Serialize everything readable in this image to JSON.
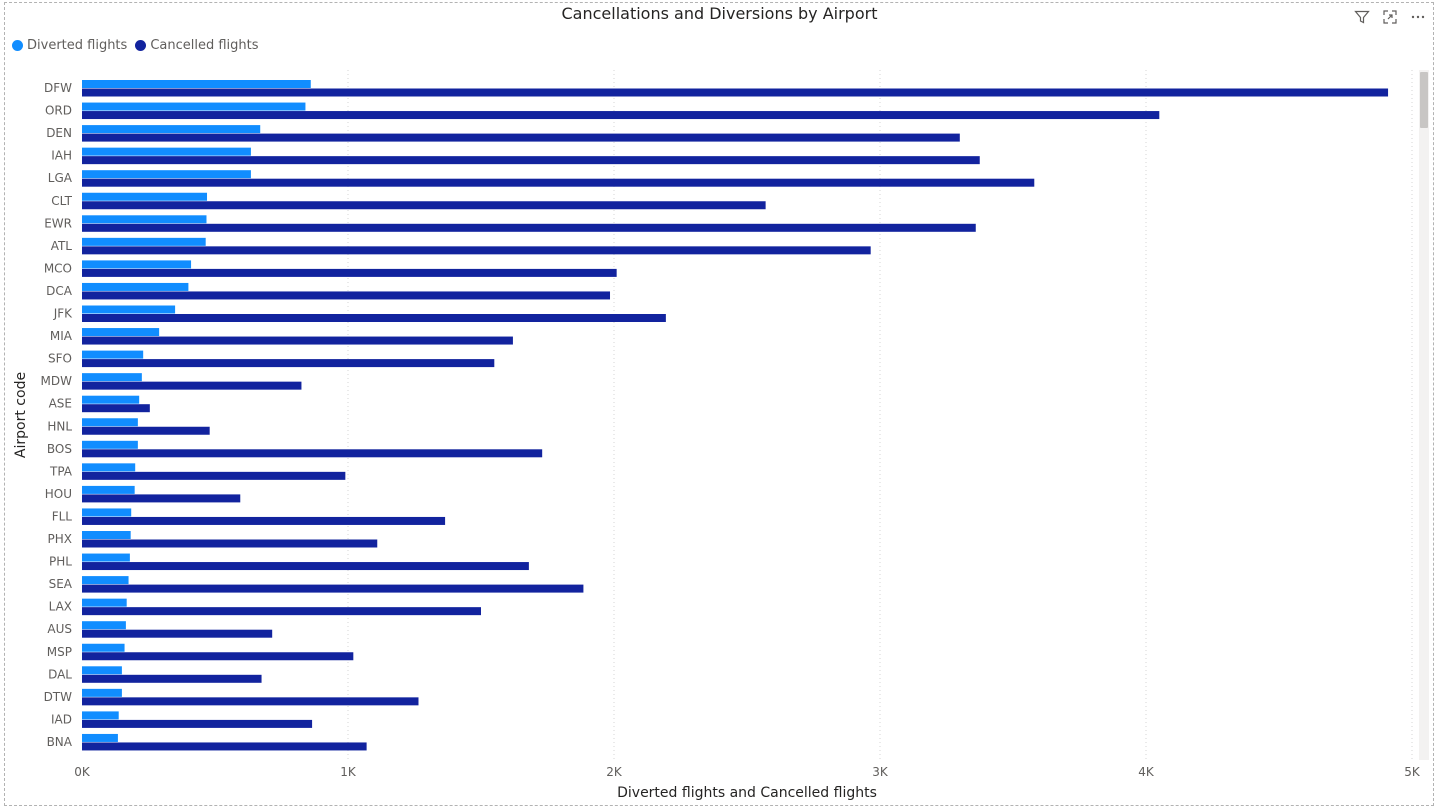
{
  "chart_data": {
    "type": "bar",
    "orientation": "horizontal",
    "title": "Cancellations and Diversions by Airport",
    "xlabel": "Diverted flights and Cancelled flights",
    "ylabel": "Airport code",
    "xlim": [
      0,
      5000
    ],
    "x_ticks": [
      0,
      1000,
      2000,
      3000,
      4000,
      5000
    ],
    "x_tick_labels": [
      "0K",
      "1K",
      "2K",
      "3K",
      "4K",
      "5K"
    ],
    "grid": "vertical dotted",
    "legend_position": "top-left",
    "categories": [
      "DFW",
      "ORD",
      "DEN",
      "IAH",
      "LGA",
      "CLT",
      "EWR",
      "ATL",
      "MCO",
      "DCA",
      "JFK",
      "MIA",
      "SFO",
      "MDW",
      "ASE",
      "HNL",
      "BOS",
      "TPA",
      "HOU",
      "FLL",
      "PHX",
      "PHL",
      "SEA",
      "LAX",
      "AUS",
      "MSP",
      "DAL",
      "DTW",
      "IAD",
      "BNA"
    ],
    "series": [
      {
        "name": "Diverted flights",
        "color": "#118DFF",
        "values": [
          860,
          840,
          670,
          635,
          635,
          470,
          468,
          465,
          410,
          400,
          350,
          290,
          230,
          225,
          215,
          210,
          210,
          200,
          198,
          185,
          183,
          180,
          175,
          168,
          165,
          160,
          150,
          150,
          138,
          135
        ]
      },
      {
        "name": "Cancelled flights",
        "color": "#12239E",
        "values": [
          4910,
          4050,
          3300,
          3375,
          3580,
          2570,
          3360,
          2965,
          2010,
          1985,
          2195,
          1620,
          1550,
          825,
          255,
          480,
          1730,
          990,
          595,
          1365,
          1110,
          1680,
          1885,
          1500,
          715,
          1020,
          675,
          1265,
          865,
          1070
        ]
      }
    ]
  },
  "header": {
    "filter_icon": "filter-icon",
    "focus_icon": "focus-mode-icon",
    "more_icon": "more-options-icon"
  }
}
